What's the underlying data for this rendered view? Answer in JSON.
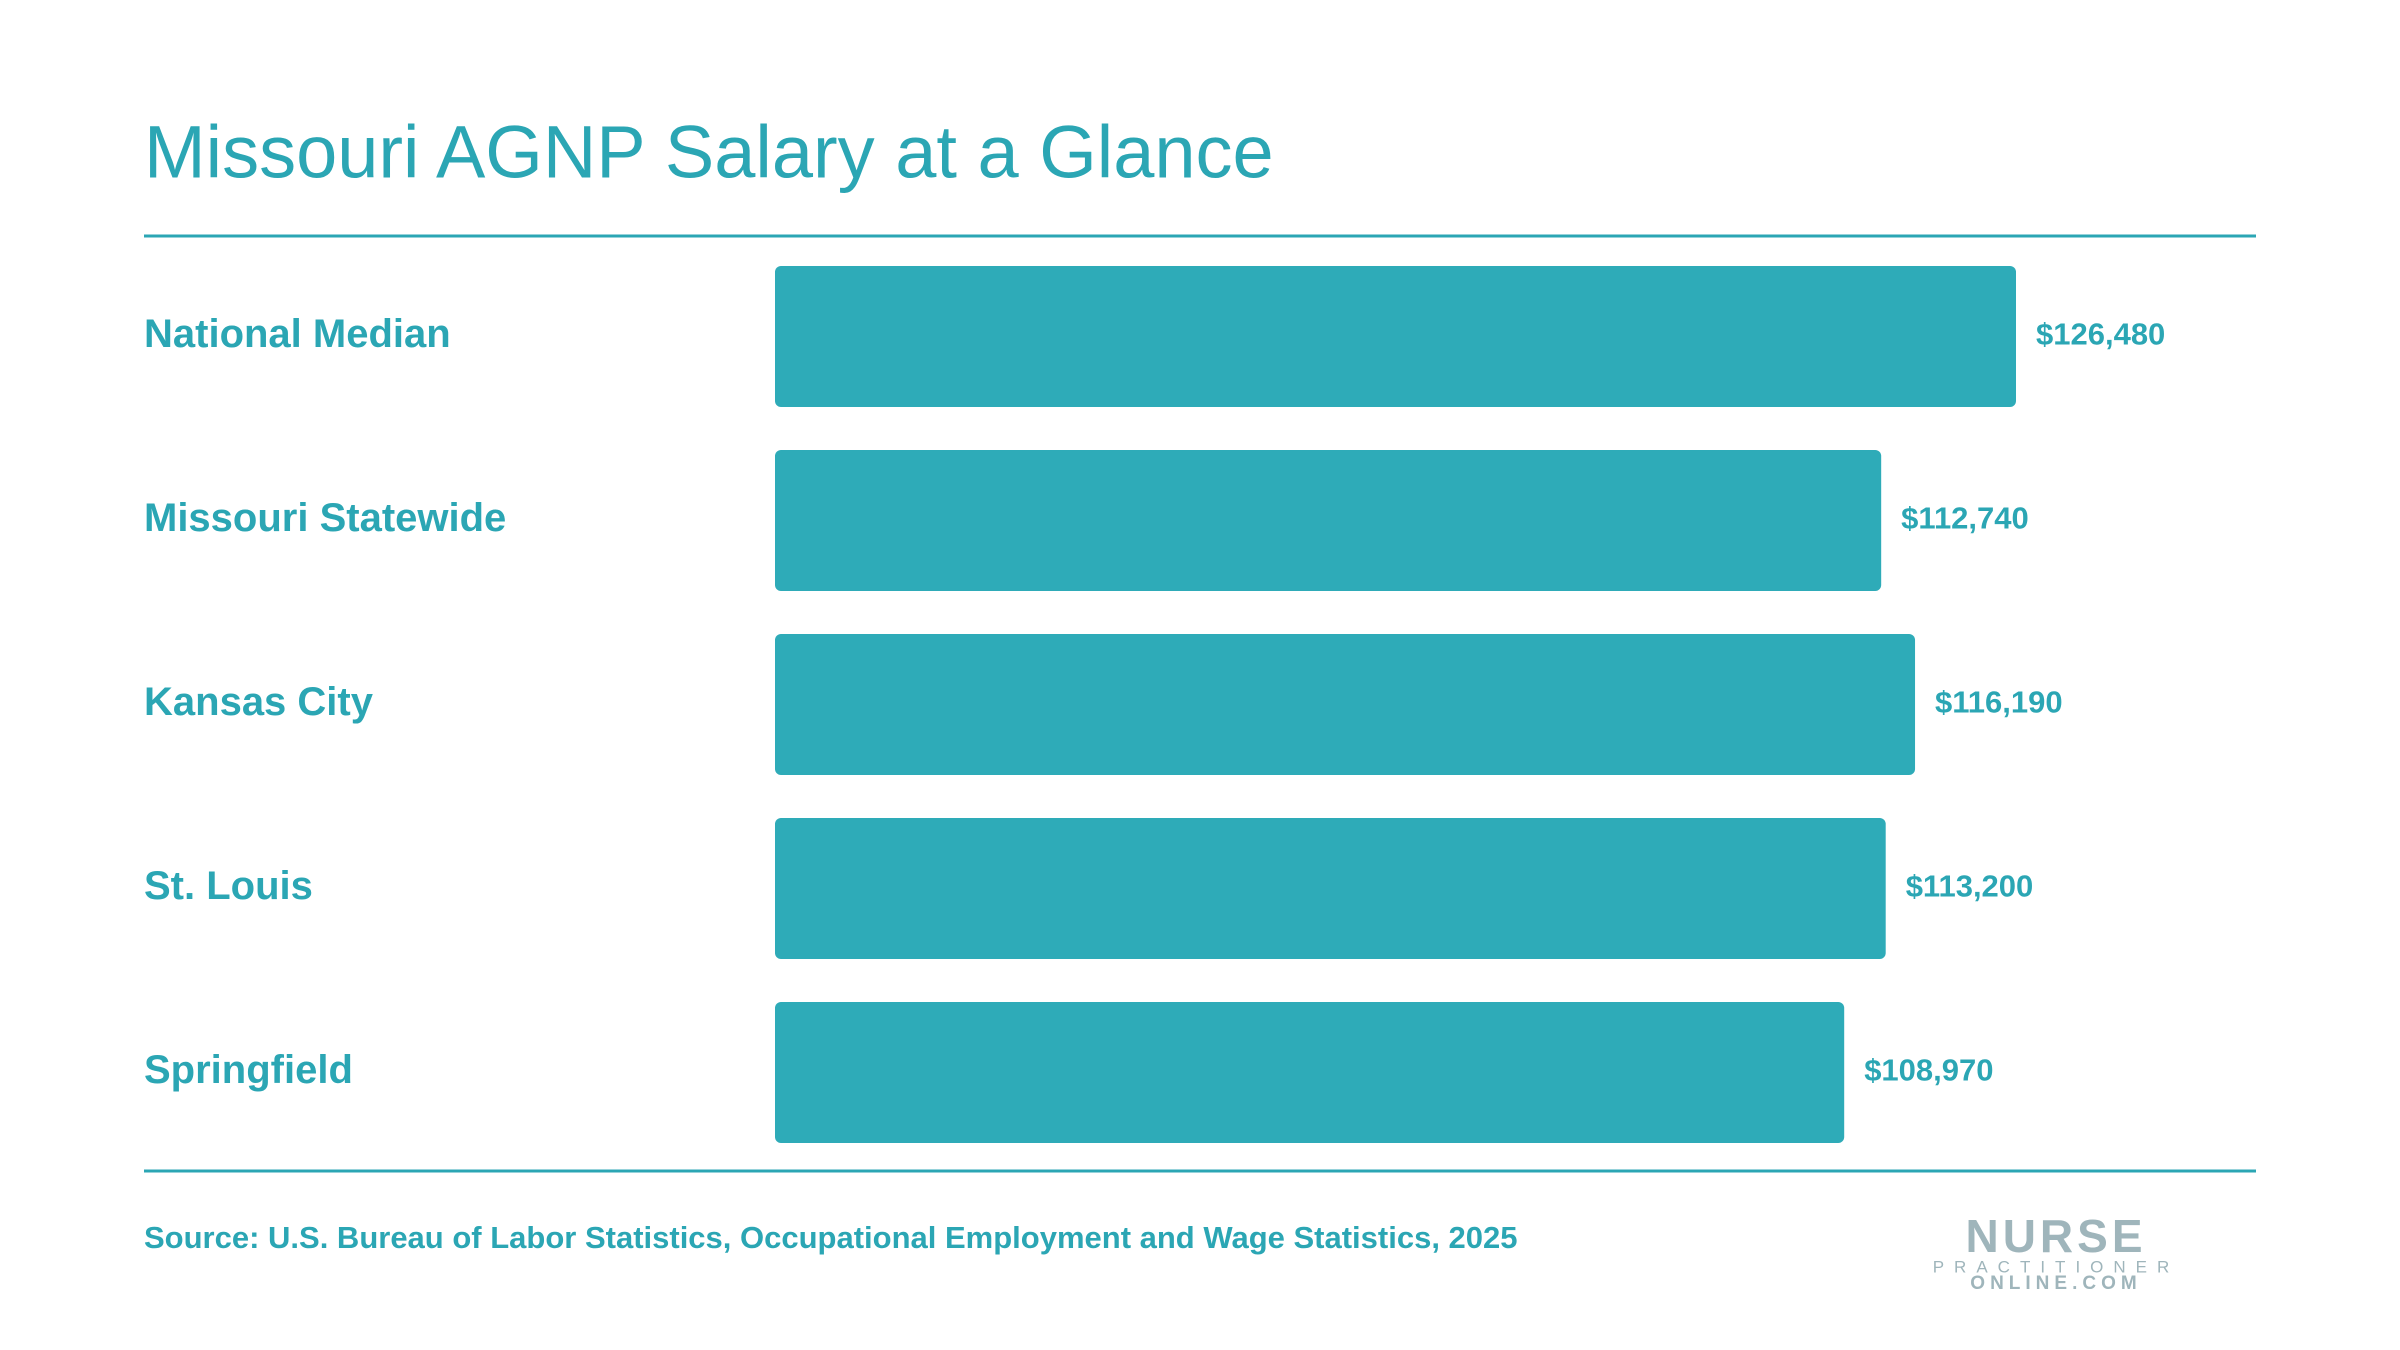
{
  "chart_data": {
    "type": "bar",
    "orientation": "horizontal",
    "title": "Missouri AGNP Salary at a Glance",
    "categories": [
      "National Median",
      "Missouri Statewide",
      "Kansas City",
      "St. Louis",
      "Springfield"
    ],
    "values": [
      126480,
      112740,
      116190,
      113200,
      108970
    ],
    "value_labels": [
      "$126,480",
      "$112,740",
      "$116,190",
      "$113,200",
      "$108,970"
    ],
    "color": "#2eabb8",
    "source": "Source: U.S. Bureau of Labor Statistics, Occupational Employment and Wage Statistics, 2025",
    "logo": {
      "line1": "NURSE",
      "line2": "PRACTITIONER",
      "line3": "ONLINE.COM"
    }
  }
}
